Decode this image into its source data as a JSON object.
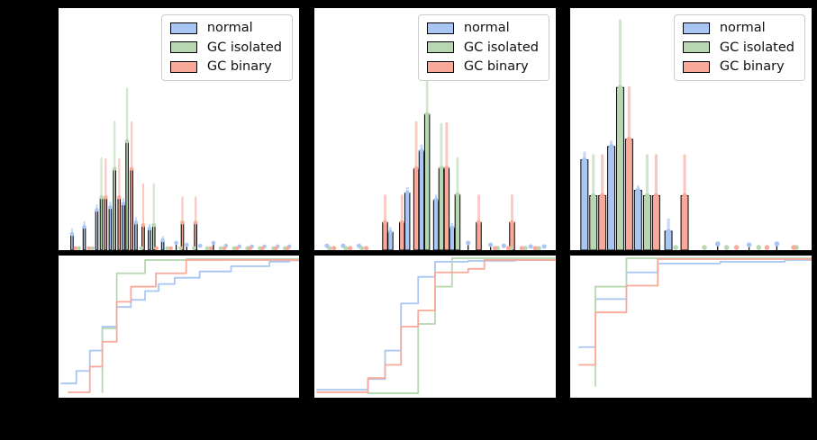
{
  "figure": {
    "background": "#000000",
    "axes_background": "#ffffff"
  },
  "colors": {
    "normal": "#a8c5f4",
    "gc_isolated": "#b6d7b0",
    "gc_binary": "#f9a89a",
    "bar_edge": "#000000",
    "legend_border": "#cccccc"
  },
  "legend": {
    "items": [
      {
        "label": "normal",
        "color_key": "normal"
      },
      {
        "label": "GC isolated",
        "color_key": "gc_isolated"
      },
      {
        "label": "GC binary",
        "color_key": "gc_binary"
      }
    ]
  },
  "chart_data": [
    {
      "panel": 1,
      "type": "bar",
      "layout_hint": "top: histogram with error bars; bottom: cumulative step plot; legend upper right; no visible tick labels or titles",
      "units": "axis fractions: x 0-1 left to right, y 0-1 bottom to top; bars=[x,height,error_top]",
      "hist": {
        "series": [
          {
            "name": "normal",
            "color": "#a8c5f4",
            "bars": [
              [
                0.056,
                0.066,
                0.086
              ],
              [
                0.107,
                0.096,
                0.116
              ],
              [
                0.159,
                0.166,
                0.186
              ],
              [
                0.215,
                0.177,
                0.197
              ],
              [
                0.27,
                0.192,
                0.212
              ],
              [
                0.322,
                0.114,
                0.134
              ],
              [
                0.378,
                0.089,
                0.105
              ],
              [
                0.433,
                0.041,
                0.055
              ],
              [
                0.489,
                0.03,
                0.03
              ],
              [
                0.533,
                0.022,
                0.022
              ],
              [
                0.589,
                0.018,
                0.018
              ],
              [
                0.644,
                0.03,
                0.03
              ],
              [
                0.696,
                0.018,
                0.018
              ],
              [
                0.752,
                0.015,
                0.015
              ],
              [
                0.804,
                0.015,
                0.015
              ],
              [
                0.856,
                0.015,
                0.015
              ],
              [
                0.911,
                0.015,
                0.015
              ],
              [
                0.959,
                0.015,
                0.015
              ]
            ]
          },
          {
            "name": "GC isolated",
            "color": "#b6d7b0",
            "bars": [
              [
                0.178,
                0.218,
                0.38
              ],
              [
                0.233,
                0.336,
                0.531
              ],
              [
                0.285,
                0.45,
                0.668
              ],
              [
                0.396,
                0.103,
                0.273
              ],
              [
                0.085,
                0.008,
                0.008
              ],
              [
                0.141,
                0.008,
                0.008
              ],
              [
                0.344,
                0.008,
                0.008
              ],
              [
                0.452,
                0.008,
                0.008
              ],
              [
                0.507,
                0.008,
                0.008
              ],
              [
                0.563,
                0.008,
                0.008
              ],
              [
                0.618,
                0.008,
                0.008
              ],
              [
                0.674,
                0.008,
                0.008
              ],
              [
                0.73,
                0.008,
                0.008
              ],
              [
                0.785,
                0.008,
                0.008
              ],
              [
                0.837,
                0.008,
                0.008
              ],
              [
                0.893,
                0.008,
                0.008
              ],
              [
                0.941,
                0.008,
                0.008
              ]
            ]
          },
          {
            "name": "GC binary",
            "color": "#f9a89a",
            "bars": [
              [
                0.196,
                0.218,
                0.376
              ],
              [
                0.252,
                0.218,
                0.376
              ],
              [
                0.304,
                0.336,
                0.528
              ],
              [
                0.352,
                0.103,
                0.273
              ],
              [
                0.515,
                0.114,
                0.218
              ],
              [
                0.57,
                0.114,
                0.218
              ],
              [
                0.07,
                0.008,
                0.008
              ],
              [
                0.126,
                0.008,
                0.008
              ],
              [
                0.407,
                0.008,
                0.008
              ],
              [
                0.467,
                0.008,
                0.008
              ],
              [
                0.633,
                0.008,
                0.008
              ],
              [
                0.689,
                0.008,
                0.008
              ],
              [
                0.741,
                0.008,
                0.008
              ],
              [
                0.796,
                0.008,
                0.008
              ],
              [
                0.848,
                0.008,
                0.008
              ],
              [
                0.904,
                0.008,
                0.008
              ],
              [
                0.952,
                0.008,
                0.008
              ]
            ]
          }
        ]
      },
      "cdf": {
        "series": [
          {
            "name": "normal",
            "color": "#a8c5f4",
            "steps": [
              [
                0.011,
                0.1
              ],
              [
                0.074,
                0.188
              ],
              [
                0.13,
                0.331
              ],
              [
                0.182,
                0.5
              ],
              [
                0.242,
                0.638
              ],
              [
                0.301,
                0.688
              ],
              [
                0.36,
                0.75
              ],
              [
                0.416,
                0.8
              ],
              [
                0.483,
                0.844
              ],
              [
                0.587,
                0.888
              ],
              [
                0.717,
                0.925
              ],
              [
                0.877,
                0.956
              ],
              [
                0.96,
                0.966
              ]
            ]
          },
          {
            "name": "GC isolated",
            "color": "#b6d7b0",
            "steps": [
              [
                0.182,
                0.038
              ],
              [
                0.182,
                0.488
              ],
              [
                0.242,
                0.875
              ],
              [
                0.36,
                0.969
              ],
              [
                0.531,
                0.975
              ]
            ]
          },
          {
            "name": "GC binary",
            "color": "#f9a89a",
            "steps": [
              [
                0.041,
                0.038
              ],
              [
                0.13,
                0.219
              ],
              [
                0.182,
                0.394
              ],
              [
                0.242,
                0.675
              ],
              [
                0.301,
                0.781
              ],
              [
                0.405,
                0.875
              ],
              [
                0.531,
                0.969
              ]
            ]
          }
        ]
      }
    },
    {
      "panel": 2,
      "type": "bar",
      "layout_hint": "top: histogram with error bars; bottom: cumulative step plot; legend upper right; no visible tick labels or titles",
      "units": "axis fractions: x 0-1 left to right, y 0-1 bottom to top; bars=[x,height,error_top]",
      "hist": {
        "series": [
          {
            "name": "normal",
            "color": "#a8c5f4",
            "bars": [
              [
                0.052,
                0.018,
                0.018
              ],
              [
                0.119,
                0.018,
                0.018
              ],
              [
                0.185,
                0.018,
                0.018
              ],
              [
                0.315,
                0.074,
                0.09
              ],
              [
                0.385,
                0.236,
                0.256
              ],
              [
                0.444,
                0.41,
                0.432
              ],
              [
                0.504,
                0.207,
                0.225
              ],
              [
                0.57,
                0.092,
                0.108
              ],
              [
                0.637,
                0.03,
                0.03
              ],
              [
                0.73,
                0.022,
                0.022
              ],
              [
                0.785,
                0.018,
                0.018
              ],
              [
                0.896,
                0.015,
                0.015
              ],
              [
                0.952,
                0.015,
                0.015
              ]
            ]
          },
          {
            "name": "GC isolated",
            "color": "#b6d7b0",
            "bars": [
              [
                0.467,
                0.561,
                0.808
              ],
              [
                0.526,
                0.339,
                0.52
              ],
              [
                0.593,
                0.229,
                0.38
              ],
              [
                0.063,
                0.008,
                0.008
              ],
              [
                0.13,
                0.008,
                0.008
              ],
              [
                0.196,
                0.008,
                0.008
              ],
              [
                0.759,
                0.008,
                0.008
              ],
              [
                0.815,
                0.008,
                0.008
              ],
              [
                0.874,
                0.008,
                0.008
              ],
              [
                0.93,
                0.008,
                0.008
              ]
            ]
          },
          {
            "name": "GC binary",
            "color": "#f9a89a",
            "bars": [
              [
                0.293,
                0.114,
                0.225
              ],
              [
                0.363,
                0.114,
                0.225
              ],
              [
                0.422,
                0.336,
                0.528
              ],
              [
                0.548,
                0.339,
                0.524
              ],
              [
                0.681,
                0.114,
                0.225
              ],
              [
                0.819,
                0.114,
                0.225
              ],
              [
                0.081,
                0.008,
                0.008
              ],
              [
                0.148,
                0.008,
                0.008
              ],
              [
                0.215,
                0.008,
                0.008
              ],
              [
                0.748,
                0.008,
                0.008
              ],
              [
                0.804,
                0.008,
                0.008
              ],
              [
                0.859,
                0.008,
                0.008
              ],
              [
                0.915,
                0.008,
                0.008
              ]
            ]
          }
        ]
      },
      "cdf": {
        "series": [
          {
            "name": "normal",
            "color": "#a8c5f4",
            "steps": [
              [
                0.011,
                0.056
              ],
              [
                0.222,
                0.131
              ],
              [
                0.293,
                0.331
              ],
              [
                0.359,
                0.663
              ],
              [
                0.43,
                0.85
              ],
              [
                0.5,
                0.956
              ],
              [
                0.637,
                0.963
              ],
              [
                0.833,
                0.969
              ]
            ]
          },
          {
            "name": "GC isolated",
            "color": "#b6d7b0",
            "steps": [
              [
                0.222,
                0.031
              ],
              [
                0.43,
                0.519
              ],
              [
                0.5,
                0.781
              ],
              [
                0.57,
                0.981
              ]
            ]
          },
          {
            "name": "GC binary",
            "color": "#f9a89a",
            "steps": [
              [
                0.011,
                0.038
              ],
              [
                0.222,
                0.138
              ],
              [
                0.293,
                0.231
              ],
              [
                0.359,
                0.5
              ],
              [
                0.43,
                0.613
              ],
              [
                0.5,
                0.881
              ],
              [
                0.637,
                0.906
              ],
              [
                0.704,
                0.969
              ]
            ]
          }
        ]
      }
    },
    {
      "panel": 3,
      "type": "bar",
      "layout_hint": "top: histogram with error bars; bottom: cumulative step plot; legend upper right; no visible tick labels or titles",
      "units": "axis fractions: x 0-1 left to right, y 0-1 bottom to top; bars=[x,height,error_top]",
      "hist": {
        "series": [
          {
            "name": "normal",
            "color": "#a8c5f4",
            "bars": [
              [
                0.059,
                0.373,
                0.402
              ],
              [
                0.17,
                0.428,
                0.447
              ],
              [
                0.281,
                0.247,
                0.262
              ],
              [
                0.407,
                0.078,
                0.126
              ],
              [
                0.611,
                0.026,
                0.026
              ],
              [
                0.741,
                0.022,
                0.022
              ],
              [
                0.856,
                0.026,
                0.026
              ]
            ]
          },
          {
            "name": "GC isolated",
            "color": "#b6d7b0",
            "bars": [
              [
                0.096,
                0.225,
                0.391
              ],
              [
                0.207,
                0.672,
                0.948
              ],
              [
                0.319,
                0.225,
                0.391
              ],
              [
                0.437,
                0.011,
                0.011
              ],
              [
                0.556,
                0.011,
                0.011
              ],
              [
                0.648,
                0.011,
                0.011
              ],
              [
                0.781,
                0.011,
                0.011
              ],
              [
                0.937,
                0.011,
                0.011
              ]
            ]
          },
          {
            "name": "GC binary",
            "color": "#f9a89a",
            "bars": [
              [
                0.133,
                0.225,
                0.391
              ],
              [
                0.244,
                0.458,
                0.672
              ],
              [
                0.356,
                0.225,
                0.391
              ],
              [
                0.474,
                0.225,
                0.391
              ],
              [
                0.689,
                0.011,
                0.011
              ],
              [
                0.815,
                0.011,
                0.011
              ],
              [
                0.926,
                0.011,
                0.011
              ]
            ]
          }
        ]
      },
      "cdf": {
        "series": [
          {
            "name": "normal",
            "color": "#a8c5f4",
            "steps": [
              [
                0.037,
                0.356
              ],
              [
                0.104,
                0.694
              ],
              [
                0.233,
                0.881
              ],
              [
                0.363,
                0.944
              ],
              [
                0.622,
                0.956
              ],
              [
                0.889,
                0.969
              ]
            ]
          },
          {
            "name": "GC isolated",
            "color": "#b6d7b0",
            "steps": [
              [
                0.104,
                0.081
              ],
              [
                0.104,
                0.781
              ],
              [
                0.233,
                0.981
              ]
            ]
          },
          {
            "name": "GC binary",
            "color": "#f9a89a",
            "steps": [
              [
                0.037,
                0.231
              ],
              [
                0.104,
                0.6
              ],
              [
                0.233,
                0.788
              ],
              [
                0.363,
                0.975
              ]
            ]
          }
        ]
      }
    }
  ]
}
